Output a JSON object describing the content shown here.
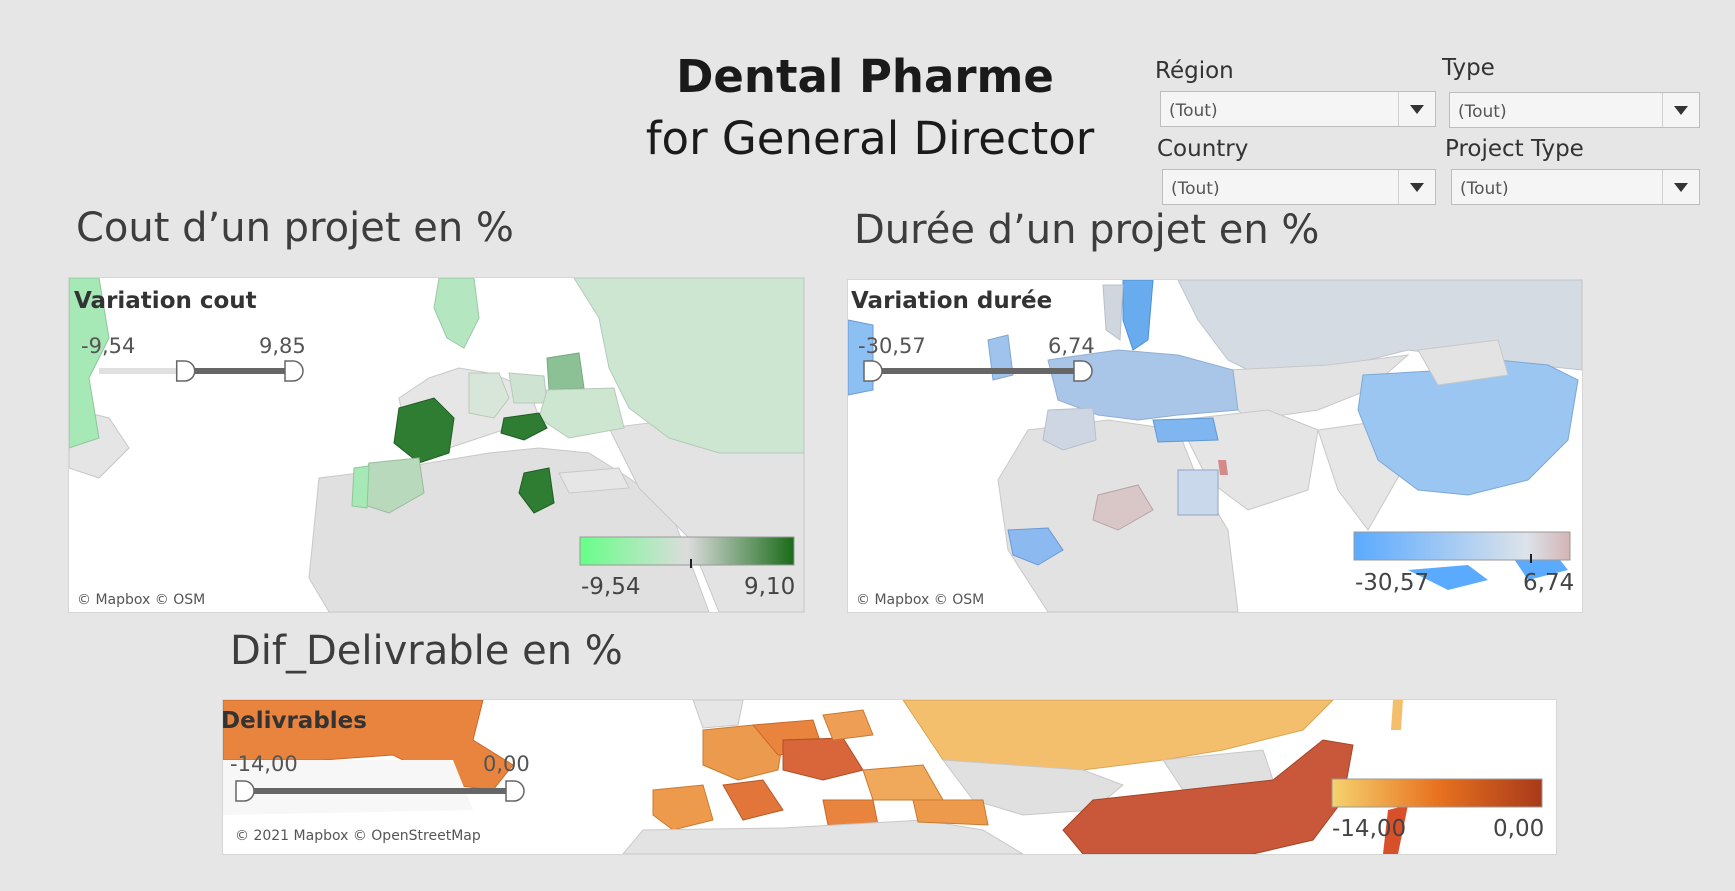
{
  "header": {
    "title": "Dental Pharme",
    "subtitle": "for General Director"
  },
  "filters": {
    "region": {
      "label": "Région",
      "value": "(Tout)"
    },
    "type": {
      "label": "Type",
      "value": "(Tout)"
    },
    "country": {
      "label": "Country",
      "value": "(Tout)"
    },
    "project_type": {
      "label": "Project Type",
      "value": "(Tout)"
    }
  },
  "cost_map": {
    "section_title": "Cout d’un projet en %",
    "legend_title": "Variation cout",
    "slider_min": "-9,54",
    "slider_max": "9,85",
    "slider_low_fraction": 0.43,
    "slider_high_fraction": 1.0,
    "colorbar_min": "-9,54",
    "colorbar_max": "9,10",
    "color_low": "#66ff88",
    "color_high": "#1a6b1a",
    "credit": "© Mapbox © OSM"
  },
  "duration_map": {
    "section_title": "Durée d’un projet en %",
    "legend_title": "Variation durée",
    "slider_min": "-30,57",
    "slider_max": "6,74",
    "slider_low_fraction": 0.0,
    "slider_high_fraction": 1.0,
    "colorbar_min": "-30,57",
    "colorbar_max": "6,74",
    "color_low": "#5aaaff",
    "color_high": "#d4b4b4",
    "credit": "© Mapbox © OSM"
  },
  "deliverable_map": {
    "section_title": "Dif_Delivrable en %",
    "legend_title": "Delivrables",
    "slider_min": "-14,00",
    "slider_max": "0,00",
    "slider_low_fraction": 0.0,
    "slider_high_fraction": 1.0,
    "colorbar_min": "-14,00",
    "colorbar_max": "0,00",
    "color_low": "#f5d26e",
    "color_mid": "#e8721f",
    "color_high": "#a83a1a",
    "credit": "© 2021 Mapbox © OpenStreetMap"
  }
}
